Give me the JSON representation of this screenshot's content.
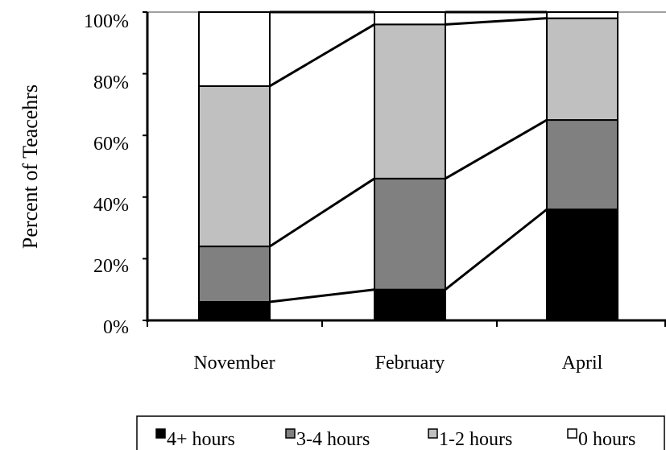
{
  "chart_data": {
    "type": "bar",
    "stacked": true,
    "percent": true,
    "categories": [
      "November",
      "February",
      "April"
    ],
    "series": [
      {
        "name": "4+ hours",
        "values": [
          6,
          10,
          36
        ],
        "color": "#000000"
      },
      {
        "name": "3-4 hours",
        "values": [
          18,
          36,
          29
        ],
        "color": "#808080"
      },
      {
        "name": "1-2 hours",
        "values": [
          52,
          50,
          33
        ],
        "color": "#c0c0c0"
      },
      {
        "name": "0 hours",
        "values": [
          24,
          4,
          2
        ],
        "color": "#ffffff"
      }
    ],
    "ylabel": "Percent of Teacehrs",
    "ylim": [
      0,
      100
    ],
    "yticks": [
      "0%",
      "20%",
      "40%",
      "60%",
      "80%",
      "100%"
    ],
    "series_lines": true,
    "legend_position": "bottom",
    "grid": false
  }
}
